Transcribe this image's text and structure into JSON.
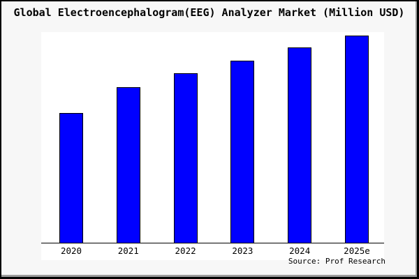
{
  "chart_data": {
    "type": "bar",
    "title": "Global Electroencephalogram(EEG) Analyzer Market (Million USD)",
    "categories": [
      "2020",
      "2021",
      "2022",
      "2023",
      "2024",
      "2025e"
    ],
    "values": [
      62.5,
      75.0,
      81.6,
      87.9,
      94.0,
      100.0
    ],
    "value_note": "y-axis has no tick labels in the image; values are relative heights estimated from pixels, indexed to 2025e = 100",
    "xlabel": "",
    "ylabel": "",
    "ylim": [
      0,
      101.5
    ],
    "grid": false,
    "legend": null,
    "bar_color": "#0000ff",
    "bar_border_color": "#000000",
    "source_label": "Source: Prof Research"
  },
  "colors": {
    "background": "#f7f7f7",
    "plot_background": "#ffffff",
    "frame_border": "#000000",
    "text": "#000000"
  }
}
